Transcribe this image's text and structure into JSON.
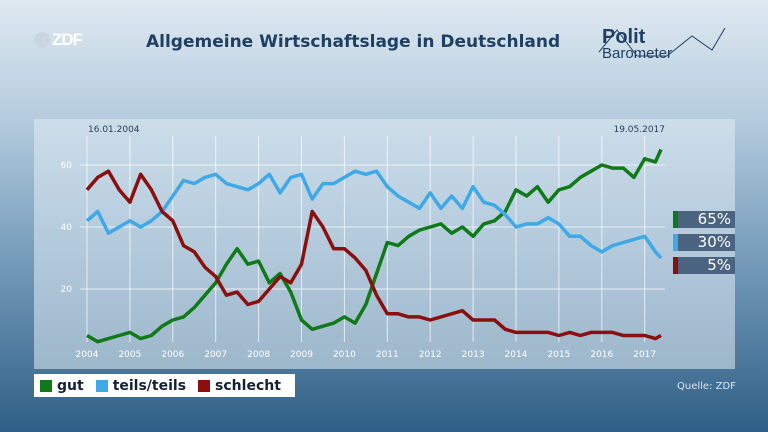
{
  "header": {
    "logo": "ZDF",
    "title": "Allgemeine Wirtschaftslage in Deutschland",
    "brand_line1": "Polit",
    "brand_line2": "Barometer"
  },
  "chart_data": {
    "type": "line",
    "title": "Allgemeine Wirtschaftslage in Deutschland",
    "start_label": "16.01.2004",
    "end_label": "19.05.2017",
    "xlim": [
      2004,
      2017.4
    ],
    "ylim": [
      0,
      70
    ],
    "x_ticks": [
      "2004",
      "2005",
      "2006",
      "2007",
      "2008",
      "2009",
      "2010",
      "2011",
      "2012",
      "2013",
      "2014",
      "2015",
      "2016",
      "2017"
    ],
    "y_ticks": [
      "20",
      "40",
      "60"
    ],
    "grid": true,
    "x": [
      2004,
      2004.25,
      2004.5,
      2004.75,
      2005,
      2005.25,
      2005.5,
      2005.75,
      2006,
      2006.25,
      2006.5,
      2006.75,
      2007,
      2007.25,
      2007.5,
      2007.75,
      2008,
      2008.25,
      2008.5,
      2008.75,
      2009,
      2009.25,
      2009.5,
      2009.75,
      2010,
      2010.25,
      2010.5,
      2010.75,
      2011,
      2011.25,
      2011.5,
      2011.75,
      2012,
      2012.25,
      2012.5,
      2012.75,
      2013,
      2013.25,
      2013.5,
      2013.75,
      2014,
      2014.25,
      2014.5,
      2014.75,
      2015,
      2015.25,
      2015.5,
      2015.75,
      2016,
      2016.25,
      2016.5,
      2016.75,
      2017,
      2017.25,
      2017.38
    ],
    "series": [
      {
        "name": "gut",
        "color": "#0f7a17",
        "values": [
          5,
          3,
          4,
          5,
          6,
          4,
          5,
          8,
          10,
          11,
          14,
          18,
          22,
          28,
          33,
          28,
          29,
          22,
          25,
          19,
          10,
          7,
          8,
          9,
          11,
          9,
          15,
          25,
          35,
          34,
          37,
          39,
          40,
          41,
          38,
          40,
          37,
          41,
          42,
          45,
          52,
          50,
          53,
          48,
          52,
          53,
          56,
          58,
          60,
          59,
          59,
          56,
          62,
          61,
          65
        ],
        "last_label": "65%"
      },
      {
        "name": "teils/teils",
        "color": "#3fa9e8",
        "values": [
          42,
          45,
          38,
          40,
          42,
          40,
          42,
          45,
          50,
          55,
          54,
          56,
          57,
          54,
          53,
          52,
          54,
          57,
          51,
          56,
          57,
          49,
          54,
          54,
          56,
          58,
          57,
          58,
          53,
          50,
          48,
          46,
          51,
          46,
          50,
          46,
          53,
          48,
          47,
          44,
          40,
          41,
          41,
          43,
          41,
          37,
          37,
          34,
          32,
          34,
          35,
          36,
          37,
          32,
          30
        ],
        "last_label": "30%"
      },
      {
        "name": "schlecht",
        "color": "#8a1010",
        "values": [
          52,
          56,
          58,
          52,
          48,
          57,
          52,
          45,
          42,
          34,
          32,
          27,
          24,
          18,
          19,
          15,
          16,
          20,
          24,
          22,
          28,
          45,
          40,
          33,
          33,
          30,
          26,
          18,
          12,
          12,
          11,
          11,
          10,
          11,
          12,
          13,
          10,
          10,
          10,
          7,
          6,
          6,
          6,
          6,
          5,
          6,
          5,
          6,
          6,
          6,
          5,
          5,
          5,
          4,
          5
        ],
        "last_label": "5%"
      }
    ],
    "legend": "bottom-left"
  },
  "footer": {
    "source": "Quelle: ZDF"
  }
}
